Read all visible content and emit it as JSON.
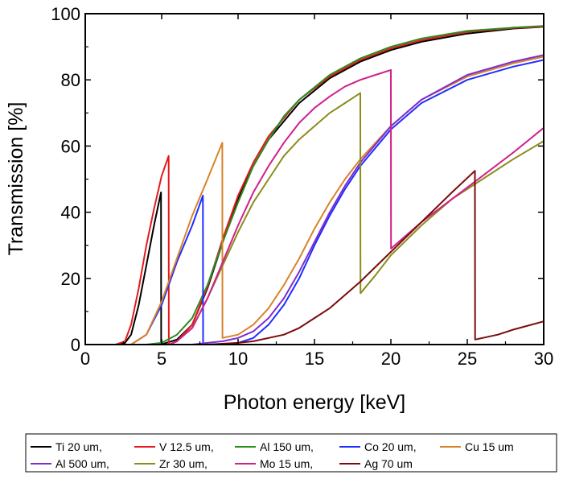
{
  "chart_data": {
    "type": "line",
    "title": "",
    "xlabel": "Photon energy [keV]",
    "ylabel": "Transmission [%]",
    "xlim": [
      0,
      30
    ],
    "ylim": [
      0,
      100
    ],
    "x_ticks": [
      "0",
      "5",
      "10",
      "15",
      "20",
      "25",
      "30"
    ],
    "y_ticks": [
      "0",
      "20",
      "40",
      "60",
      "80",
      "100"
    ],
    "grid": false,
    "legend_position": "bottom",
    "series": [
      {
        "name": "Ti 20 um,",
        "color": "#000000",
        "points": [
          [
            0,
            0
          ],
          [
            2.0,
            0
          ],
          [
            2.6,
            0.5
          ],
          [
            3.0,
            3
          ],
          [
            3.5,
            12
          ],
          [
            4.0,
            24
          ],
          [
            4.5,
            36
          ],
          [
            4.96,
            46
          ],
          [
            4.97,
            0
          ],
          [
            6,
            1.5
          ],
          [
            7,
            6
          ],
          [
            8,
            17
          ],
          [
            9,
            31
          ],
          [
            10,
            44
          ],
          [
            11,
            54
          ],
          [
            12,
            62
          ],
          [
            14,
            73
          ],
          [
            16,
            80.5
          ],
          [
            18,
            85.5
          ],
          [
            20,
            89
          ],
          [
            22,
            91.5
          ],
          [
            25,
            94
          ],
          [
            28,
            95.5
          ],
          [
            30,
            96
          ]
        ]
      },
      {
        "name": "V 12.5 um,",
        "color": "#e41a1c",
        "points": [
          [
            0,
            0
          ],
          [
            2.0,
            0
          ],
          [
            2.6,
            1
          ],
          [
            3.0,
            6
          ],
          [
            3.5,
            17
          ],
          [
            4.0,
            30
          ],
          [
            4.5,
            41
          ],
          [
            5.0,
            51
          ],
          [
            5.46,
            57
          ],
          [
            5.47,
            0
          ],
          [
            6,
            1
          ],
          [
            7,
            6
          ],
          [
            8,
            17.5
          ],
          [
            9,
            32
          ],
          [
            10,
            45
          ],
          [
            11,
            55
          ],
          [
            12,
            63
          ],
          [
            14,
            74
          ],
          [
            16,
            81
          ],
          [
            18,
            86
          ],
          [
            20,
            89.5
          ],
          [
            22,
            92
          ],
          [
            25,
            94.5
          ],
          [
            28,
            95.7
          ],
          [
            30,
            96
          ]
        ]
      },
      {
        "name": "Al 150 um,",
        "color": "#2e8b22",
        "points": [
          [
            0,
            0
          ],
          [
            4.0,
            0
          ],
          [
            5,
            0.5
          ],
          [
            6,
            3
          ],
          [
            7,
            8
          ],
          [
            8,
            18
          ],
          [
            9,
            31
          ],
          [
            10,
            43
          ],
          [
            11,
            54
          ],
          [
            12,
            62
          ],
          [
            13,
            69
          ],
          [
            14,
            74
          ],
          [
            16,
            81.5
          ],
          [
            18,
            86.5
          ],
          [
            20,
            90
          ],
          [
            22,
            92.5
          ],
          [
            25,
            94.8
          ],
          [
            28,
            95.8
          ],
          [
            30,
            96.3
          ]
        ]
      },
      {
        "name": "Co 20 um,",
        "color": "#1f2eff",
        "points": [
          [
            0,
            0
          ],
          [
            3.0,
            0
          ],
          [
            4,
            3
          ],
          [
            5,
            12
          ],
          [
            6,
            25
          ],
          [
            7,
            36
          ],
          [
            7.7,
            45
          ],
          [
            7.71,
            0
          ],
          [
            9,
            0
          ],
          [
            10,
            0.5
          ],
          [
            11,
            2
          ],
          [
            12,
            6
          ],
          [
            13,
            12
          ],
          [
            14,
            20
          ],
          [
            15,
            30
          ],
          [
            16,
            39
          ],
          [
            17,
            47
          ],
          [
            18,
            54
          ],
          [
            20,
            65
          ],
          [
            22,
            73
          ],
          [
            25,
            80
          ],
          [
            28,
            84
          ],
          [
            30,
            86
          ]
        ]
      },
      {
        "name": "Cu 15 um",
        "color": "#d8832a",
        "points": [
          [
            0,
            0
          ],
          [
            3.0,
            0
          ],
          [
            4,
            3
          ],
          [
            5,
            13
          ],
          [
            6,
            26
          ],
          [
            7,
            39
          ],
          [
            8,
            50
          ],
          [
            8.97,
            61
          ],
          [
            8.98,
            2
          ],
          [
            10,
            3
          ],
          [
            11,
            6
          ],
          [
            12,
            11
          ],
          [
            13,
            18
          ],
          [
            14,
            26
          ],
          [
            15,
            35
          ],
          [
            16,
            43
          ],
          [
            17,
            50
          ],
          [
            18,
            56
          ],
          [
            20,
            66
          ],
          [
            22,
            74
          ],
          [
            25,
            81
          ],
          [
            28,
            85
          ],
          [
            30,
            87
          ]
        ]
      },
      {
        "name": "Al 500 um,",
        "color": "#7d2ecf",
        "points": [
          [
            0,
            0
          ],
          [
            7.0,
            0
          ],
          [
            8,
            0.5
          ],
          [
            9,
            1
          ],
          [
            10,
            2
          ],
          [
            11,
            4
          ],
          [
            12,
            8
          ],
          [
            13,
            14
          ],
          [
            14,
            22
          ],
          [
            15,
            31
          ],
          [
            16,
            40
          ],
          [
            17,
            48
          ],
          [
            18,
            55
          ],
          [
            20,
            66
          ],
          [
            22,
            74
          ],
          [
            25,
            81.5
          ],
          [
            28,
            85.5
          ],
          [
            30,
            87.5
          ]
        ]
      },
      {
        "name": "Zr 30 um,",
        "color": "#8c8c1a",
        "points": [
          [
            0,
            0
          ],
          [
            5.5,
            0
          ],
          [
            6,
            1
          ],
          [
            7,
            5
          ],
          [
            8,
            14
          ],
          [
            9,
            24
          ],
          [
            10,
            34
          ],
          [
            11,
            43
          ],
          [
            12,
            50
          ],
          [
            13,
            57
          ],
          [
            14,
            62
          ],
          [
            15,
            66
          ],
          [
            16,
            70
          ],
          [
            17,
            73
          ],
          [
            18.0,
            76
          ],
          [
            18.01,
            15.5
          ],
          [
            19,
            21
          ],
          [
            20,
            27
          ],
          [
            22,
            36
          ],
          [
            24,
            44
          ],
          [
            26,
            50
          ],
          [
            28,
            56
          ],
          [
            30,
            61.5
          ]
        ]
      },
      {
        "name": "Mo 15 um,",
        "color": "#d0208a",
        "points": [
          [
            0,
            0
          ],
          [
            5.5,
            0
          ],
          [
            6,
            1
          ],
          [
            7,
            5
          ],
          [
            8,
            14
          ],
          [
            9,
            25
          ],
          [
            10,
            36
          ],
          [
            11,
            46
          ],
          [
            12,
            54
          ],
          [
            13,
            61
          ],
          [
            14,
            67
          ],
          [
            15,
            71.5
          ],
          [
            16,
            75
          ],
          [
            17,
            78
          ],
          [
            18,
            80
          ],
          [
            19,
            81.5
          ],
          [
            20.0,
            83
          ],
          [
            20.01,
            29
          ],
          [
            21,
            33
          ],
          [
            22,
            37
          ],
          [
            24,
            44
          ],
          [
            26,
            51
          ],
          [
            28,
            58
          ],
          [
            30,
            65.5
          ]
        ]
      },
      {
        "name": "Ag 70 um",
        "color": "#7a0c0c",
        "points": [
          [
            0,
            0
          ],
          [
            8.0,
            0
          ],
          [
            10,
            0.5
          ],
          [
            11,
            1
          ],
          [
            12,
            2
          ],
          [
            13,
            3
          ],
          [
            14,
            5
          ],
          [
            15,
            8
          ],
          [
            16,
            11
          ],
          [
            17,
            15
          ],
          [
            18,
            19
          ],
          [
            20,
            28
          ],
          [
            22,
            37
          ],
          [
            24,
            46
          ],
          [
            25.5,
            52.5
          ],
          [
            25.51,
            1.5
          ],
          [
            27,
            3
          ],
          [
            28,
            4.5
          ],
          [
            30,
            7
          ]
        ]
      }
    ]
  }
}
